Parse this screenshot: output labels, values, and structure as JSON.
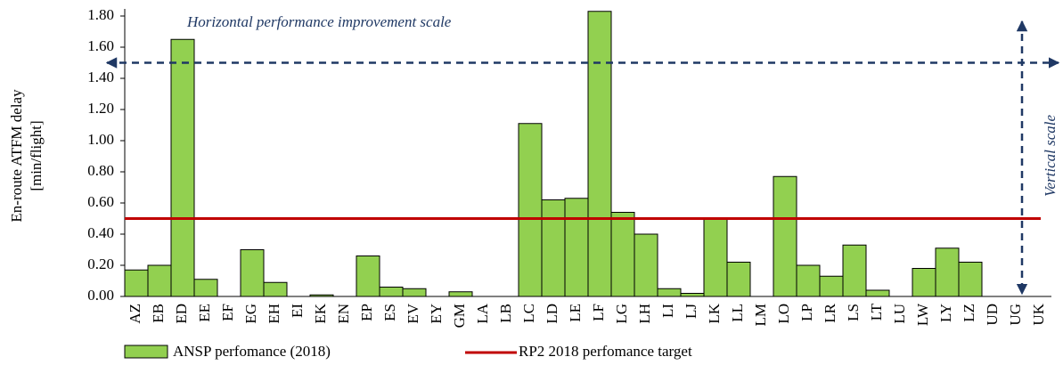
{
  "chart_data": {
    "type": "bar",
    "ylabel": [
      "En-route ATFM delay",
      "[min/flight]"
    ],
    "categories": [
      "AZ",
      "EB",
      "ED",
      "EE",
      "EF",
      "EG",
      "EH",
      "EI",
      "EK",
      "EN",
      "EP",
      "ES",
      "EV",
      "EY",
      "GM",
      "LA",
      "LB",
      "LC",
      "LD",
      "LE",
      "LF",
      "LG",
      "LH",
      "LI",
      "LJ",
      "LK",
      "LL",
      "LM",
      "LO",
      "LP",
      "LR",
      "LS",
      "LT",
      "LU",
      "LW",
      "LY",
      "LZ",
      "UD",
      "UG",
      "UK"
    ],
    "series": [
      {
        "name": "ANSP perfomance (2018)",
        "color": "#92d050",
        "values": [
          0.17,
          0.2,
          1.65,
          0.11,
          0,
          0.3,
          0.09,
          0,
          0.01,
          0,
          0.26,
          0.06,
          0.05,
          0,
          0.03,
          0,
          0,
          1.11,
          0.62,
          0.63,
          1.83,
          0.54,
          0.4,
          0.05,
          0.02,
          0.5,
          0.22,
          0,
          0.77,
          0.2,
          0.13,
          0.33,
          0.04,
          0,
          0.18,
          0.31,
          0.22,
          0,
          0,
          0
        ]
      }
    ],
    "target": {
      "name": "RP2 2018 perfomance target",
      "value": 0.5,
      "color": "#c00000"
    },
    "annotations": [
      {
        "text": "Horizontal performance improvement scale",
        "y": 1.5
      },
      {
        "text": "Vertical scale"
      }
    ],
    "ylim": [
      0,
      1.8
    ],
    "yticks": [
      {
        "value": 0,
        "label": "0.00"
      },
      {
        "value": 0.2,
        "label": "0.20"
      },
      {
        "value": 0.4,
        "label": "0.40"
      },
      {
        "value": 0.6,
        "label": "0.60"
      },
      {
        "value": 0.8,
        "label": "0.80"
      },
      {
        "value": 1,
        "label": "1.00"
      },
      {
        "value": 1.2,
        "label": "1.20"
      },
      {
        "value": 1.4,
        "label": "1.40"
      },
      {
        "value": 1.6,
        "label": "1.60"
      },
      {
        "value": 1.8,
        "label": "1.80"
      }
    ]
  }
}
